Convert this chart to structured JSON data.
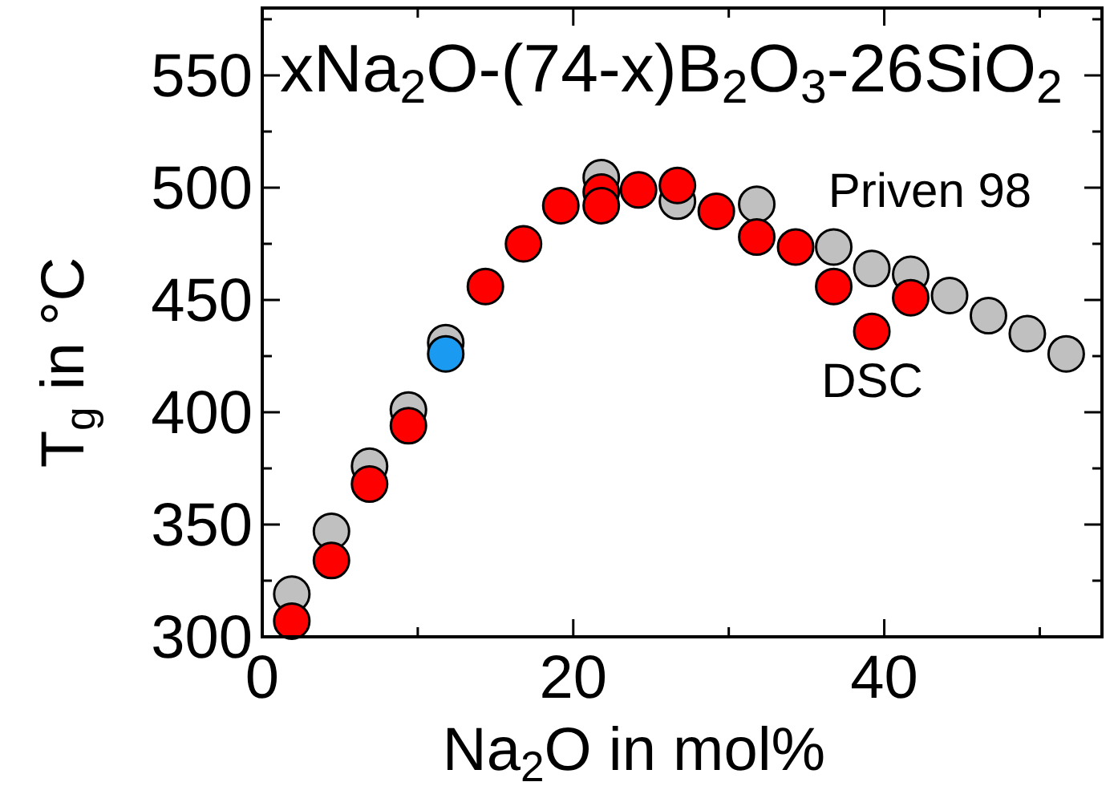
{
  "chart_data": {
    "type": "scatter",
    "title": "xNa$_{2}$O-(74-x)B$_{2}$O$_{3}$-26SiO$_{2}$",
    "xlabel": "Na$_{2}$O in mol%",
    "ylabel": "T$_{g}$ in °C",
    "xlim": [
      0,
      54
    ],
    "ylim": [
      300,
      580
    ],
    "xticks": [
      0,
      {
        "value": 10,
        "label": null
      },
      20,
      {
        "value": 30,
        "label": null
      },
      40,
      {
        "value": 50,
        "label": null
      }
    ],
    "yticks": [
      300,
      {
        "value": 325,
        "label": null
      },
      350,
      {
        "value": 375,
        "label": null
      },
      400,
      {
        "value": 425,
        "label": null
      },
      450,
      {
        "value": 475,
        "label": null
      },
      500,
      {
        "value": 525,
        "label": null
      },
      550,
      {
        "value": 575,
        "label": null
      }
    ],
    "marker": "circle",
    "grid": false,
    "legend": "right",
    "series": [
      {
        "name": "Priven 98",
        "color": "#c0c0c0",
        "x": [
          1.9,
          4.45,
          6.9,
          9.4,
          11.8,
          21.8,
          26.7,
          31.8,
          36.75,
          39.2,
          41.7,
          44.2,
          46.7,
          49.2,
          51.7
        ],
        "values": [
          319,
          347,
          376,
          401,
          431,
          504.5,
          494,
          492.6,
          473.6,
          464,
          461.4,
          452,
          443,
          435,
          426
        ]
      },
      {
        "name": "DSC",
        "color": "#ff0000",
        "x": [
          1.9,
          4.45,
          6.9,
          9.4,
          14.35,
          16.8,
          19.2,
          21.8,
          21.8,
          24.2,
          26.7,
          29.2,
          31.8,
          34.3,
          36.75,
          39.2,
          41.7
        ],
        "values": [
          307,
          334,
          368,
          394,
          456,
          475,
          492,
          498,
          492,
          499,
          501,
          489.5,
          478,
          473.6,
          456,
          436,
          451
        ]
      },
      {
        "color": "#1a9af0",
        "x": [
          11.8
        ],
        "values": [
          426
        ]
      }
    ]
  }
}
